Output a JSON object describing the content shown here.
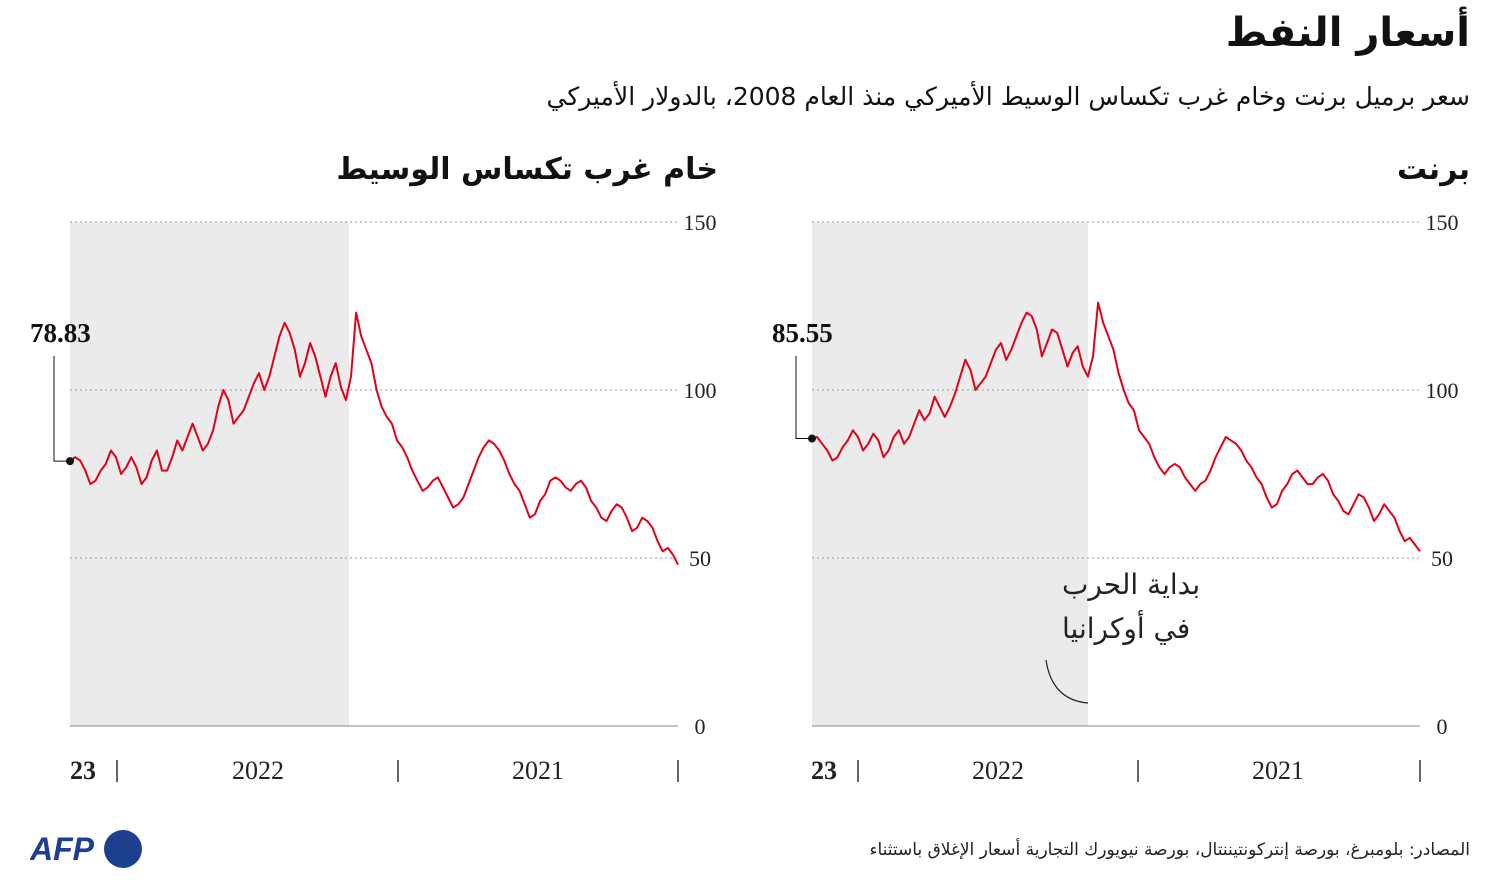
{
  "title": "أسعار النفط",
  "subtitle": "سعر برميل برنت وخام غرب تكساس الوسيط الأميركي منذ العام 2008، بالدولار الأميركي",
  "source": "المصادر: بلومبرغ، بورصة إنتركونتيننتال، بورصة نيويورك التجارية أسعار الإغلاق باستثناء",
  "logo_text": "AFP",
  "colors": {
    "line": "#e2001a",
    "shade": "#ebebeb",
    "grid": "#999999"
  },
  "chart_data": [
    {
      "type": "line",
      "title": "برنت",
      "y_ticks": [
        "150",
        "100",
        "50",
        "0"
      ],
      "ylim": [
        0,
        150
      ],
      "x_labels": [
        "23",
        "2022",
        "2021"
      ],
      "last_value_label": "85.55",
      "annotation": "بداية الحرب\nفي أوكرانيا",
      "values": [
        52,
        54,
        56,
        55,
        58,
        62,
        64,
        66,
        63,
        61,
        65,
        68,
        69,
        66,
        63,
        64,
        67,
        69,
        73,
        75,
        74,
        72,
        72,
        74,
        76,
        75,
        72,
        70,
        66,
        65,
        68,
        72,
        74,
        77,
        79,
        82,
        84,
        85,
        86,
        83,
        80,
        76,
        73,
        72,
        70,
        72,
        74,
        77,
        78,
        77,
        75,
        77,
        80,
        84,
        86,
        88,
        94,
        96,
        100,
        105,
        112,
        116,
        120,
        126,
        110,
        104,
        107,
        113,
        111,
        107,
        112,
        117,
        118,
        114,
        110,
        118,
        122,
        123,
        120,
        116,
        112,
        109,
        114,
        112,
        108,
        104,
        102,
        100,
        106,
        109,
        104,
        99,
        95,
        92,
        95,
        98,
        93,
        91,
        94,
        90,
        86,
        84,
        88,
        86,
        82,
        80,
        85,
        87,
        84,
        82,
        86,
        88,
        85,
        83,
        80,
        79,
        82,
        84,
        86,
        85.55
      ]
    },
    {
      "type": "line",
      "title": "خام غرب تكساس الوسيط",
      "y_ticks": [
        "150",
        "100",
        "50",
        "0"
      ],
      "ylim": [
        0,
        150
      ],
      "x_labels": [
        "23",
        "2022",
        "2021"
      ],
      "last_value_label": "78.83",
      "values": [
        48,
        51,
        53,
        52,
        55,
        59,
        61,
        62,
        59,
        58,
        62,
        65,
        66,
        64,
        61,
        62,
        65,
        67,
        71,
        73,
        72,
        70,
        71,
        73,
        74,
        73,
        69,
        67,
        63,
        62,
        66,
        70,
        72,
        75,
        79,
        82,
        84,
        85,
        83,
        80,
        76,
        72,
        68,
        66,
        65,
        68,
        71,
        74,
        73,
        71,
        70,
        73,
        76,
        80,
        83,
        85,
        90,
        92,
        95,
        100,
        108,
        112,
        116,
        123,
        104,
        97,
        101,
        108,
        104,
        98,
        104,
        110,
        114,
        108,
        104,
        112,
        117,
        120,
        116,
        110,
        104,
        100,
        105,
        102,
        98,
        94,
        92,
        90,
        97,
        100,
        95,
        88,
        84,
        82,
        86,
        90,
        86,
        82,
        85,
        80,
        76,
        76,
        82,
        79,
        74,
        72,
        77,
        80,
        77,
        75,
        80,
        82,
        78,
        76,
        73,
        72,
        76,
        79,
        80,
        78.83
      ]
    }
  ]
}
